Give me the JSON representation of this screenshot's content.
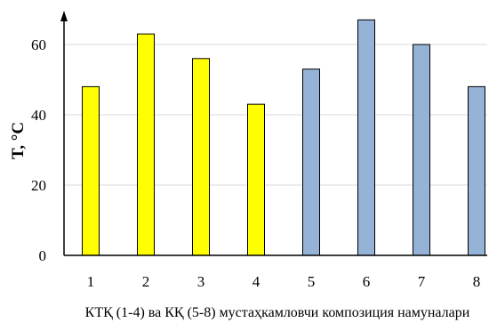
{
  "chart_data": {
    "type": "bar",
    "categories": [
      "1",
      "2",
      "3",
      "4",
      "5",
      "6",
      "7",
      "8"
    ],
    "values": [
      48,
      63,
      56,
      43,
      53,
      67,
      60,
      48
    ],
    "bar_colors": [
      "#ffff00",
      "#ffff00",
      "#ffff00",
      "#ffff00",
      "#95b3d7",
      "#95b3d7",
      "#95b3d7",
      "#95b3d7"
    ],
    "bar_outline": "#000000",
    "ylabel": "T, °C",
    "xlabel": "КТҚ (1-4) ва КҚ (5-8) мустаҳкамловчи композиция намуналари",
    "ylim": [
      0,
      72
    ],
    "yticks": [
      0,
      20,
      40,
      60
    ],
    "grid": true,
    "grid_color": "#d9d9d9",
    "axis_color": "#000000"
  }
}
